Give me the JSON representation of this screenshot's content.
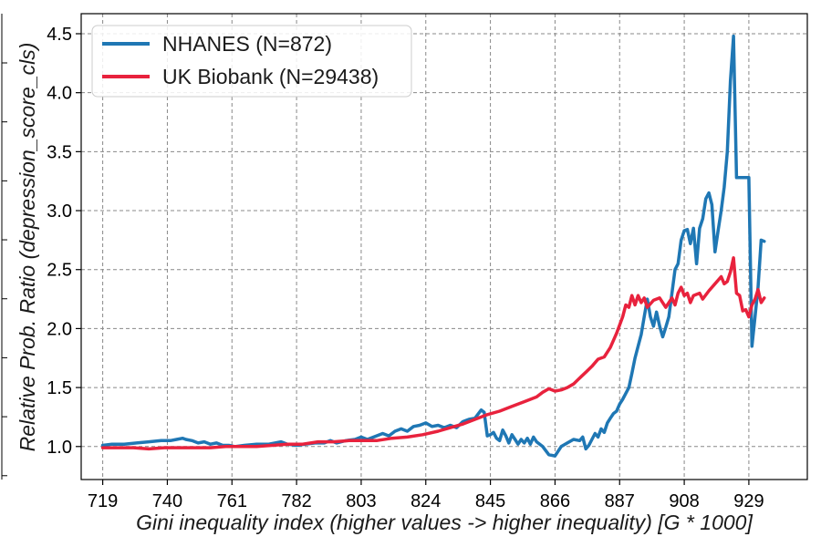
{
  "chart_data": {
    "type": "line",
    "xlabel": "Gini inequality index (higher values -> higher inequality) [G * 1000]",
    "ylabel": "Relative Prob. Ratio (depression_score_cls)",
    "xlim": [
      712,
      948
    ],
    "ylim": [
      0.72,
      4.67
    ],
    "x_ticks": [
      719,
      740,
      761,
      782,
      803,
      824,
      845,
      866,
      887,
      908,
      929
    ],
    "y_ticks": [
      1.0,
      1.5,
      2.0,
      2.5,
      3.0,
      3.5,
      4.0,
      4.5
    ],
    "y_tick_labels": [
      "1.0",
      "1.5",
      "2.0",
      "2.5",
      "3.0",
      "3.5",
      "4.0",
      "4.5"
    ],
    "grid": true,
    "legend_position": "top-left",
    "series": [
      {
        "name": "NHANES (N=872)",
        "color": "#1f77b4",
        "points": [
          [
            719,
            1.01
          ],
          [
            722,
            1.02
          ],
          [
            726,
            1.02
          ],
          [
            730,
            1.03
          ],
          [
            734,
            1.04
          ],
          [
            738,
            1.05
          ],
          [
            741,
            1.05
          ],
          [
            743,
            1.06
          ],
          [
            745,
            1.07
          ],
          [
            746,
            1.06
          ],
          [
            748,
            1.05
          ],
          [
            750,
            1.03
          ],
          [
            752,
            1.04
          ],
          [
            754,
            1.02
          ],
          [
            756,
            1.03
          ],
          [
            758,
            1.01
          ],
          [
            760,
            1.01
          ],
          [
            762,
            1.0
          ],
          [
            765,
            1.01
          ],
          [
            769,
            1.02
          ],
          [
            773,
            1.02
          ],
          [
            777,
            1.04
          ],
          [
            779,
            1.02
          ],
          [
            782,
            1.01
          ],
          [
            785,
            1.02
          ],
          [
            788,
            1.03
          ],
          [
            791,
            1.03
          ],
          [
            793,
            1.05
          ],
          [
            795,
            1.03
          ],
          [
            798,
            1.05
          ],
          [
            801,
            1.06
          ],
          [
            803,
            1.08
          ],
          [
            805,
            1.06
          ],
          [
            808,
            1.09
          ],
          [
            810,
            1.11
          ],
          [
            812,
            1.09
          ],
          [
            814,
            1.13
          ],
          [
            816,
            1.15
          ],
          [
            818,
            1.13
          ],
          [
            820,
            1.17
          ],
          [
            822,
            1.18
          ],
          [
            824,
            1.2
          ],
          [
            826,
            1.17
          ],
          [
            828,
            1.18
          ],
          [
            830,
            1.16
          ],
          [
            832,
            1.18
          ],
          [
            834,
            1.16
          ],
          [
            836,
            1.21
          ],
          [
            838,
            1.23
          ],
          [
            840,
            1.24
          ],
          [
            842,
            1.31
          ],
          [
            843,
            1.29
          ],
          [
            844,
            1.09
          ],
          [
            845,
            1.1
          ],
          [
            846,
            1.12
          ],
          [
            847,
            1.07
          ],
          [
            848,
            1.05
          ],
          [
            849,
            1.14
          ],
          [
            850,
            1.09
          ],
          [
            851,
            1.03
          ],
          [
            852,
            1.1
          ],
          [
            853,
            1.06
          ],
          [
            854,
            1.02
          ],
          [
            855,
            1.06
          ],
          [
            856,
            1.03
          ],
          [
            857,
            1.07
          ],
          [
            858,
            1.02
          ],
          [
            859,
            1.08
          ],
          [
            860,
            1.04
          ],
          [
            862,
            1.0
          ],
          [
            864,
            0.93
          ],
          [
            866,
            0.92
          ],
          [
            868,
            1.0
          ],
          [
            870,
            1.03
          ],
          [
            872,
            1.06
          ],
          [
            874,
            1.05
          ],
          [
            875,
            1.08
          ],
          [
            876,
            0.98
          ],
          [
            877,
            1.01
          ],
          [
            878,
            1.06
          ],
          [
            879,
            1.11
          ],
          [
            880,
            1.08
          ],
          [
            881,
            1.15
          ],
          [
            882,
            1.12
          ],
          [
            883,
            1.2
          ],
          [
            884,
            1.24
          ],
          [
            885,
            1.28
          ],
          [
            886,
            1.3
          ],
          [
            887,
            1.36
          ],
          [
            888,
            1.4
          ],
          [
            889,
            1.45
          ],
          [
            890,
            1.5
          ],
          [
            891,
            1.62
          ],
          [
            892,
            1.75
          ],
          [
            893,
            1.85
          ],
          [
            894,
            1.95
          ],
          [
            895,
            2.1
          ],
          [
            896,
            2.25
          ],
          [
            897,
            2.1
          ],
          [
            898,
            2.02
          ],
          [
            899,
            2.14
          ],
          [
            900,
            2.02
          ],
          [
            901,
            1.93
          ],
          [
            902,
            2.01
          ],
          [
            903,
            2.1
          ],
          [
            904,
            2.3
          ],
          [
            905,
            2.5
          ],
          [
            906,
            2.55
          ],
          [
            907,
            2.75
          ],
          [
            908,
            2.83
          ],
          [
            909,
            2.84
          ],
          [
            910,
            2.72
          ],
          [
            911,
            2.85
          ],
          [
            912,
            2.55
          ],
          [
            913,
            2.85
          ],
          [
            914,
            2.93
          ],
          [
            915,
            3.1
          ],
          [
            916,
            3.15
          ],
          [
            917,
            3.05
          ],
          [
            918,
            2.65
          ],
          [
            919,
            2.83
          ],
          [
            920,
            3.0
          ],
          [
            921,
            3.2
          ],
          [
            922,
            3.5
          ],
          [
            923,
            4.1
          ],
          [
            924,
            4.48
          ],
          [
            925,
            3.28
          ],
          [
            927,
            3.28
          ],
          [
            929,
            3.28
          ],
          [
            930,
            1.85
          ],
          [
            931,
            2.1
          ],
          [
            932,
            2.35
          ],
          [
            933,
            2.75
          ],
          [
            934,
            2.74
          ]
        ]
      },
      {
        "name": "UK Biobank (N=29438)",
        "color": "#e8223d",
        "points": [
          [
            719,
            0.99
          ],
          [
            724,
            0.99
          ],
          [
            729,
            0.99
          ],
          [
            734,
            0.98
          ],
          [
            739,
            0.99
          ],
          [
            744,
            0.99
          ],
          [
            749,
            0.99
          ],
          [
            754,
            0.99
          ],
          [
            759,
            1.0
          ],
          [
            764,
            1.0
          ],
          [
            769,
            1.0
          ],
          [
            774,
            1.01
          ],
          [
            779,
            1.02
          ],
          [
            784,
            1.02
          ],
          [
            789,
            1.04
          ],
          [
            794,
            1.04
          ],
          [
            799,
            1.05
          ],
          [
            803,
            1.05
          ],
          [
            808,
            1.05
          ],
          [
            813,
            1.07
          ],
          [
            818,
            1.08
          ],
          [
            823,
            1.1
          ],
          [
            828,
            1.13
          ],
          [
            832,
            1.16
          ],
          [
            836,
            1.19
          ],
          [
            840,
            1.23
          ],
          [
            844,
            1.27
          ],
          [
            848,
            1.3
          ],
          [
            852,
            1.34
          ],
          [
            856,
            1.38
          ],
          [
            860,
            1.42
          ],
          [
            862,
            1.46
          ],
          [
            864,
            1.49
          ],
          [
            866,
            1.47
          ],
          [
            868,
            1.48
          ],
          [
            870,
            1.5
          ],
          [
            872,
            1.53
          ],
          [
            874,
            1.58
          ],
          [
            876,
            1.63
          ],
          [
            878,
            1.68
          ],
          [
            880,
            1.74
          ],
          [
            882,
            1.76
          ],
          [
            884,
            1.84
          ],
          [
            886,
            1.96
          ],
          [
            888,
            2.1
          ],
          [
            889,
            2.2
          ],
          [
            890,
            2.18
          ],
          [
            891,
            2.28
          ],
          [
            892,
            2.2
          ],
          [
            893,
            2.28
          ],
          [
            894,
            2.22
          ],
          [
            895,
            2.26
          ],
          [
            896,
            2.18
          ],
          [
            898,
            2.24
          ],
          [
            900,
            2.26
          ],
          [
            902,
            2.18
          ],
          [
            904,
            2.26
          ],
          [
            905,
            2.2
          ],
          [
            906,
            2.3
          ],
          [
            907,
            2.35
          ],
          [
            908,
            2.28
          ],
          [
            909,
            2.3
          ],
          [
            910,
            2.22
          ],
          [
            911,
            2.28
          ],
          [
            913,
            2.3
          ],
          [
            914,
            2.25
          ],
          [
            916,
            2.32
          ],
          [
            918,
            2.38
          ],
          [
            920,
            2.44
          ],
          [
            921,
            2.38
          ],
          [
            922,
            2.4
          ],
          [
            923,
            2.48
          ],
          [
            924,
            2.6
          ],
          [
            925,
            2.3
          ],
          [
            926,
            2.28
          ],
          [
            927,
            2.15
          ],
          [
            928,
            2.16
          ],
          [
            929,
            2.1
          ],
          [
            930,
            2.2
          ],
          [
            931,
            2.25
          ],
          [
            932,
            2.33
          ],
          [
            933,
            2.22
          ],
          [
            934,
            2.26
          ]
        ]
      }
    ]
  }
}
